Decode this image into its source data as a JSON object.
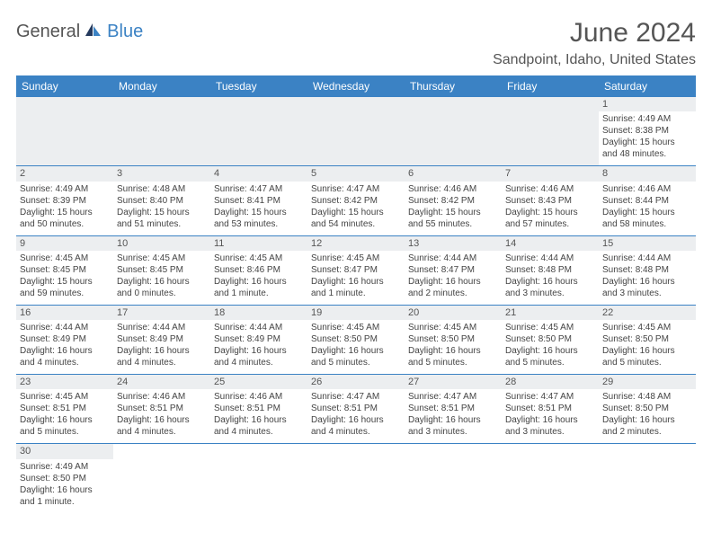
{
  "brand": {
    "part1": "General",
    "part2": "Blue"
  },
  "title": "June 2024",
  "location": "Sandpoint, Idaho, United States",
  "colors": {
    "header_bg": "#3b82c4",
    "header_fg": "#ffffff",
    "daynum_bg": "#eceef0",
    "row_border": "#3b82c4",
    "text": "#444444",
    "title_color": "#555555"
  },
  "typography": {
    "title_fontsize": 30,
    "location_fontsize": 16,
    "header_fontsize": 12,
    "cell_fontsize": 10,
    "daynum_fontsize": 11
  },
  "weekdays": [
    "Sunday",
    "Monday",
    "Tuesday",
    "Wednesday",
    "Thursday",
    "Friday",
    "Saturday"
  ],
  "weeks": [
    [
      null,
      null,
      null,
      null,
      null,
      null,
      {
        "n": "1",
        "sr": "Sunrise: 4:49 AM",
        "ss": "Sunset: 8:38 PM",
        "dl1": "Daylight: 15 hours",
        "dl2": "and 48 minutes."
      }
    ],
    [
      {
        "n": "2",
        "sr": "Sunrise: 4:49 AM",
        "ss": "Sunset: 8:39 PM",
        "dl1": "Daylight: 15 hours",
        "dl2": "and 50 minutes."
      },
      {
        "n": "3",
        "sr": "Sunrise: 4:48 AM",
        "ss": "Sunset: 8:40 PM",
        "dl1": "Daylight: 15 hours",
        "dl2": "and 51 minutes."
      },
      {
        "n": "4",
        "sr": "Sunrise: 4:47 AM",
        "ss": "Sunset: 8:41 PM",
        "dl1": "Daylight: 15 hours",
        "dl2": "and 53 minutes."
      },
      {
        "n": "5",
        "sr": "Sunrise: 4:47 AM",
        "ss": "Sunset: 8:42 PM",
        "dl1": "Daylight: 15 hours",
        "dl2": "and 54 minutes."
      },
      {
        "n": "6",
        "sr": "Sunrise: 4:46 AM",
        "ss": "Sunset: 8:42 PM",
        "dl1": "Daylight: 15 hours",
        "dl2": "and 55 minutes."
      },
      {
        "n": "7",
        "sr": "Sunrise: 4:46 AM",
        "ss": "Sunset: 8:43 PM",
        "dl1": "Daylight: 15 hours",
        "dl2": "and 57 minutes."
      },
      {
        "n": "8",
        "sr": "Sunrise: 4:46 AM",
        "ss": "Sunset: 8:44 PM",
        "dl1": "Daylight: 15 hours",
        "dl2": "and 58 minutes."
      }
    ],
    [
      {
        "n": "9",
        "sr": "Sunrise: 4:45 AM",
        "ss": "Sunset: 8:45 PM",
        "dl1": "Daylight: 15 hours",
        "dl2": "and 59 minutes."
      },
      {
        "n": "10",
        "sr": "Sunrise: 4:45 AM",
        "ss": "Sunset: 8:45 PM",
        "dl1": "Daylight: 16 hours",
        "dl2": "and 0 minutes."
      },
      {
        "n": "11",
        "sr": "Sunrise: 4:45 AM",
        "ss": "Sunset: 8:46 PM",
        "dl1": "Daylight: 16 hours",
        "dl2": "and 1 minute."
      },
      {
        "n": "12",
        "sr": "Sunrise: 4:45 AM",
        "ss": "Sunset: 8:47 PM",
        "dl1": "Daylight: 16 hours",
        "dl2": "and 1 minute."
      },
      {
        "n": "13",
        "sr": "Sunrise: 4:44 AM",
        "ss": "Sunset: 8:47 PM",
        "dl1": "Daylight: 16 hours",
        "dl2": "and 2 minutes."
      },
      {
        "n": "14",
        "sr": "Sunrise: 4:44 AM",
        "ss": "Sunset: 8:48 PM",
        "dl1": "Daylight: 16 hours",
        "dl2": "and 3 minutes."
      },
      {
        "n": "15",
        "sr": "Sunrise: 4:44 AM",
        "ss": "Sunset: 8:48 PM",
        "dl1": "Daylight: 16 hours",
        "dl2": "and 3 minutes."
      }
    ],
    [
      {
        "n": "16",
        "sr": "Sunrise: 4:44 AM",
        "ss": "Sunset: 8:49 PM",
        "dl1": "Daylight: 16 hours",
        "dl2": "and 4 minutes."
      },
      {
        "n": "17",
        "sr": "Sunrise: 4:44 AM",
        "ss": "Sunset: 8:49 PM",
        "dl1": "Daylight: 16 hours",
        "dl2": "and 4 minutes."
      },
      {
        "n": "18",
        "sr": "Sunrise: 4:44 AM",
        "ss": "Sunset: 8:49 PM",
        "dl1": "Daylight: 16 hours",
        "dl2": "and 4 minutes."
      },
      {
        "n": "19",
        "sr": "Sunrise: 4:45 AM",
        "ss": "Sunset: 8:50 PM",
        "dl1": "Daylight: 16 hours",
        "dl2": "and 5 minutes."
      },
      {
        "n": "20",
        "sr": "Sunrise: 4:45 AM",
        "ss": "Sunset: 8:50 PM",
        "dl1": "Daylight: 16 hours",
        "dl2": "and 5 minutes."
      },
      {
        "n": "21",
        "sr": "Sunrise: 4:45 AM",
        "ss": "Sunset: 8:50 PM",
        "dl1": "Daylight: 16 hours",
        "dl2": "and 5 minutes."
      },
      {
        "n": "22",
        "sr": "Sunrise: 4:45 AM",
        "ss": "Sunset: 8:50 PM",
        "dl1": "Daylight: 16 hours",
        "dl2": "and 5 minutes."
      }
    ],
    [
      {
        "n": "23",
        "sr": "Sunrise: 4:45 AM",
        "ss": "Sunset: 8:51 PM",
        "dl1": "Daylight: 16 hours",
        "dl2": "and 5 minutes."
      },
      {
        "n": "24",
        "sr": "Sunrise: 4:46 AM",
        "ss": "Sunset: 8:51 PM",
        "dl1": "Daylight: 16 hours",
        "dl2": "and 4 minutes."
      },
      {
        "n": "25",
        "sr": "Sunrise: 4:46 AM",
        "ss": "Sunset: 8:51 PM",
        "dl1": "Daylight: 16 hours",
        "dl2": "and 4 minutes."
      },
      {
        "n": "26",
        "sr": "Sunrise: 4:47 AM",
        "ss": "Sunset: 8:51 PM",
        "dl1": "Daylight: 16 hours",
        "dl2": "and 4 minutes."
      },
      {
        "n": "27",
        "sr": "Sunrise: 4:47 AM",
        "ss": "Sunset: 8:51 PM",
        "dl1": "Daylight: 16 hours",
        "dl2": "and 3 minutes."
      },
      {
        "n": "28",
        "sr": "Sunrise: 4:47 AM",
        "ss": "Sunset: 8:51 PM",
        "dl1": "Daylight: 16 hours",
        "dl2": "and 3 minutes."
      },
      {
        "n": "29",
        "sr": "Sunrise: 4:48 AM",
        "ss": "Sunset: 8:50 PM",
        "dl1": "Daylight: 16 hours",
        "dl2": "and 2 minutes."
      }
    ],
    [
      {
        "n": "30",
        "sr": "Sunrise: 4:49 AM",
        "ss": "Sunset: 8:50 PM",
        "dl1": "Daylight: 16 hours",
        "dl2": "and 1 minute."
      },
      null,
      null,
      null,
      null,
      null,
      null
    ]
  ]
}
